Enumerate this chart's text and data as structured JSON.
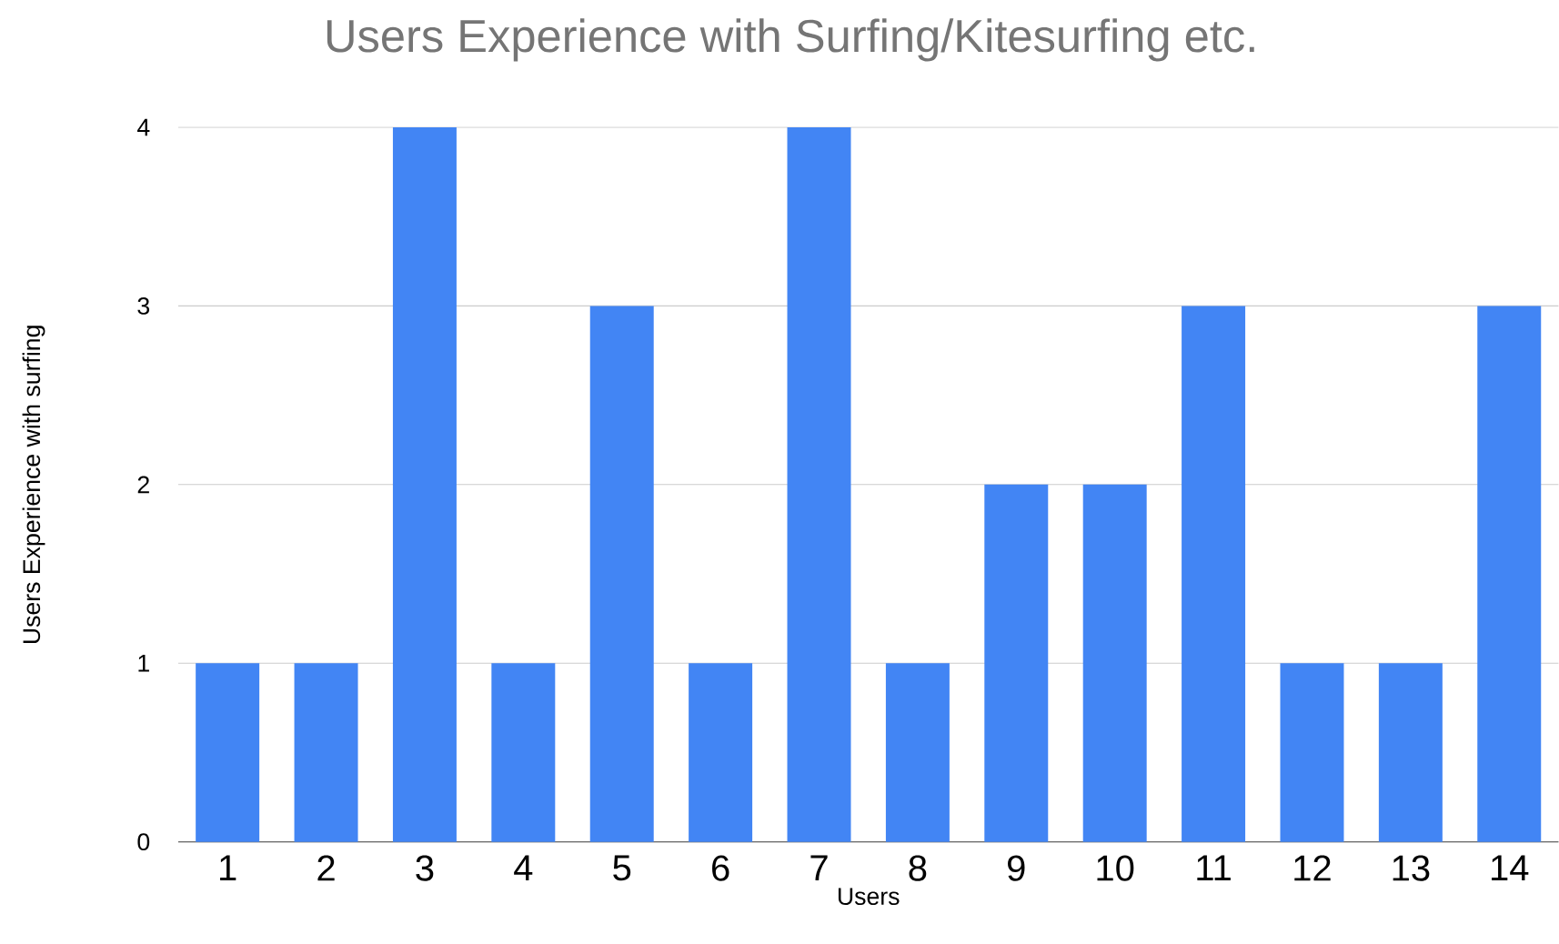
{
  "chart_data": {
    "type": "bar",
    "title": "Users Experience with Surfing/Kitesurfing etc.",
    "xlabel": "Users",
    "ylabel": "Users Experience with surfing",
    "categories": [
      "1",
      "2",
      "3",
      "4",
      "5",
      "6",
      "7",
      "8",
      "9",
      "10",
      "11",
      "12",
      "13",
      "14"
    ],
    "values": [
      1,
      1,
      4,
      1,
      3,
      1,
      4,
      1,
      2,
      2,
      3,
      1,
      1,
      3
    ],
    "color": "#4285f4",
    "ylim": [
      0,
      4
    ],
    "yticks": [
      0,
      1,
      2,
      3,
      4
    ],
    "grid": "y"
  }
}
